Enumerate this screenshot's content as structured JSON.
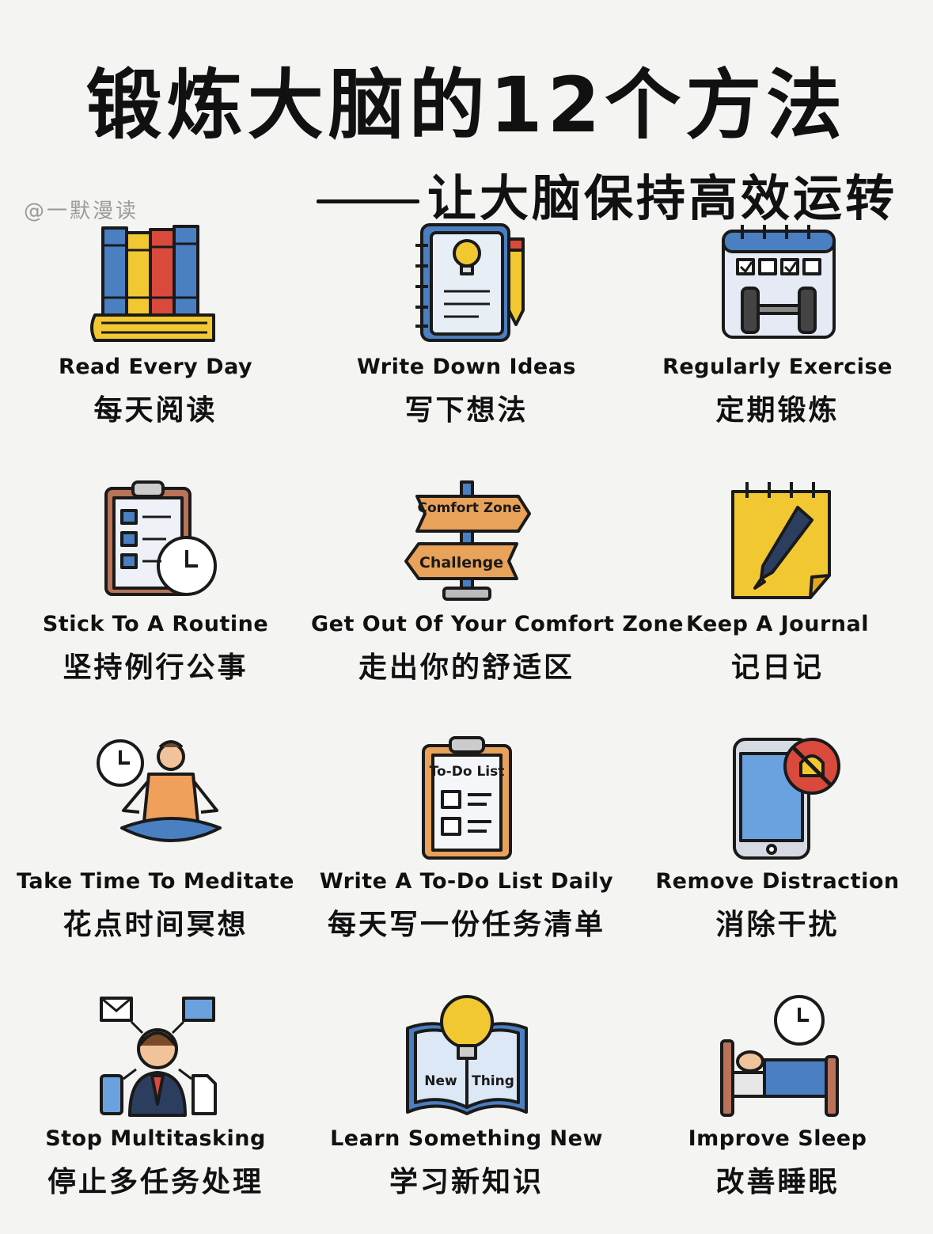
{
  "title": "锻炼大脑的12个方法",
  "subtitle": "让大脑保持高效运转",
  "watermark": "@一默漫读",
  "items": [
    {
      "en": "Read Every Day",
      "zh": "每天阅读",
      "icon": "books-icon"
    },
    {
      "en": "Write Down Ideas",
      "zh": "写下想法",
      "icon": "notebook-lightbulb-icon"
    },
    {
      "en": "Regularly Exercise",
      "zh": "定期锻炼",
      "icon": "calendar-dumbbell-icon"
    },
    {
      "en": "Stick To A Routine",
      "zh": "坚持例行公事",
      "icon": "clipboard-clock-icon"
    },
    {
      "en": "Get Out Of Your Comfort Zone",
      "zh": "走出你的舒适区",
      "icon": "signpost-icon"
    },
    {
      "en": "Keep A Journal",
      "zh": "记日记",
      "icon": "journal-pen-icon"
    },
    {
      "en": "Take Time To Meditate",
      "zh": "花点时间冥想",
      "icon": "meditation-icon"
    },
    {
      "en": "Write A To-Do List Daily",
      "zh": "每天写一份任务清单",
      "icon": "todo-list-icon"
    },
    {
      "en": "Remove Distraction",
      "zh": "消除干扰",
      "icon": "phone-muted-icon"
    },
    {
      "en": "Stop Multitasking",
      "zh": "停止多任务处理",
      "icon": "multitasking-icon"
    },
    {
      "en": "Learn Something New",
      "zh": "学习新知识",
      "icon": "book-lightbulb-icon"
    },
    {
      "en": "Improve Sleep",
      "zh": "改善睡眠",
      "icon": "bed-clock-icon"
    }
  ],
  "icon_text": {
    "sign_top": "Comfort Zone",
    "sign_bottom": "Challenge",
    "todo_header": "To-Do List",
    "book_left": "New",
    "book_right": "Thing"
  },
  "colors": {
    "blue": "#4a7fc1",
    "yellow": "#f2c832",
    "red": "#d94a3d",
    "orange": "#f0a05a",
    "wood": "#e8a25a",
    "ink": "#1a1a1a"
  }
}
